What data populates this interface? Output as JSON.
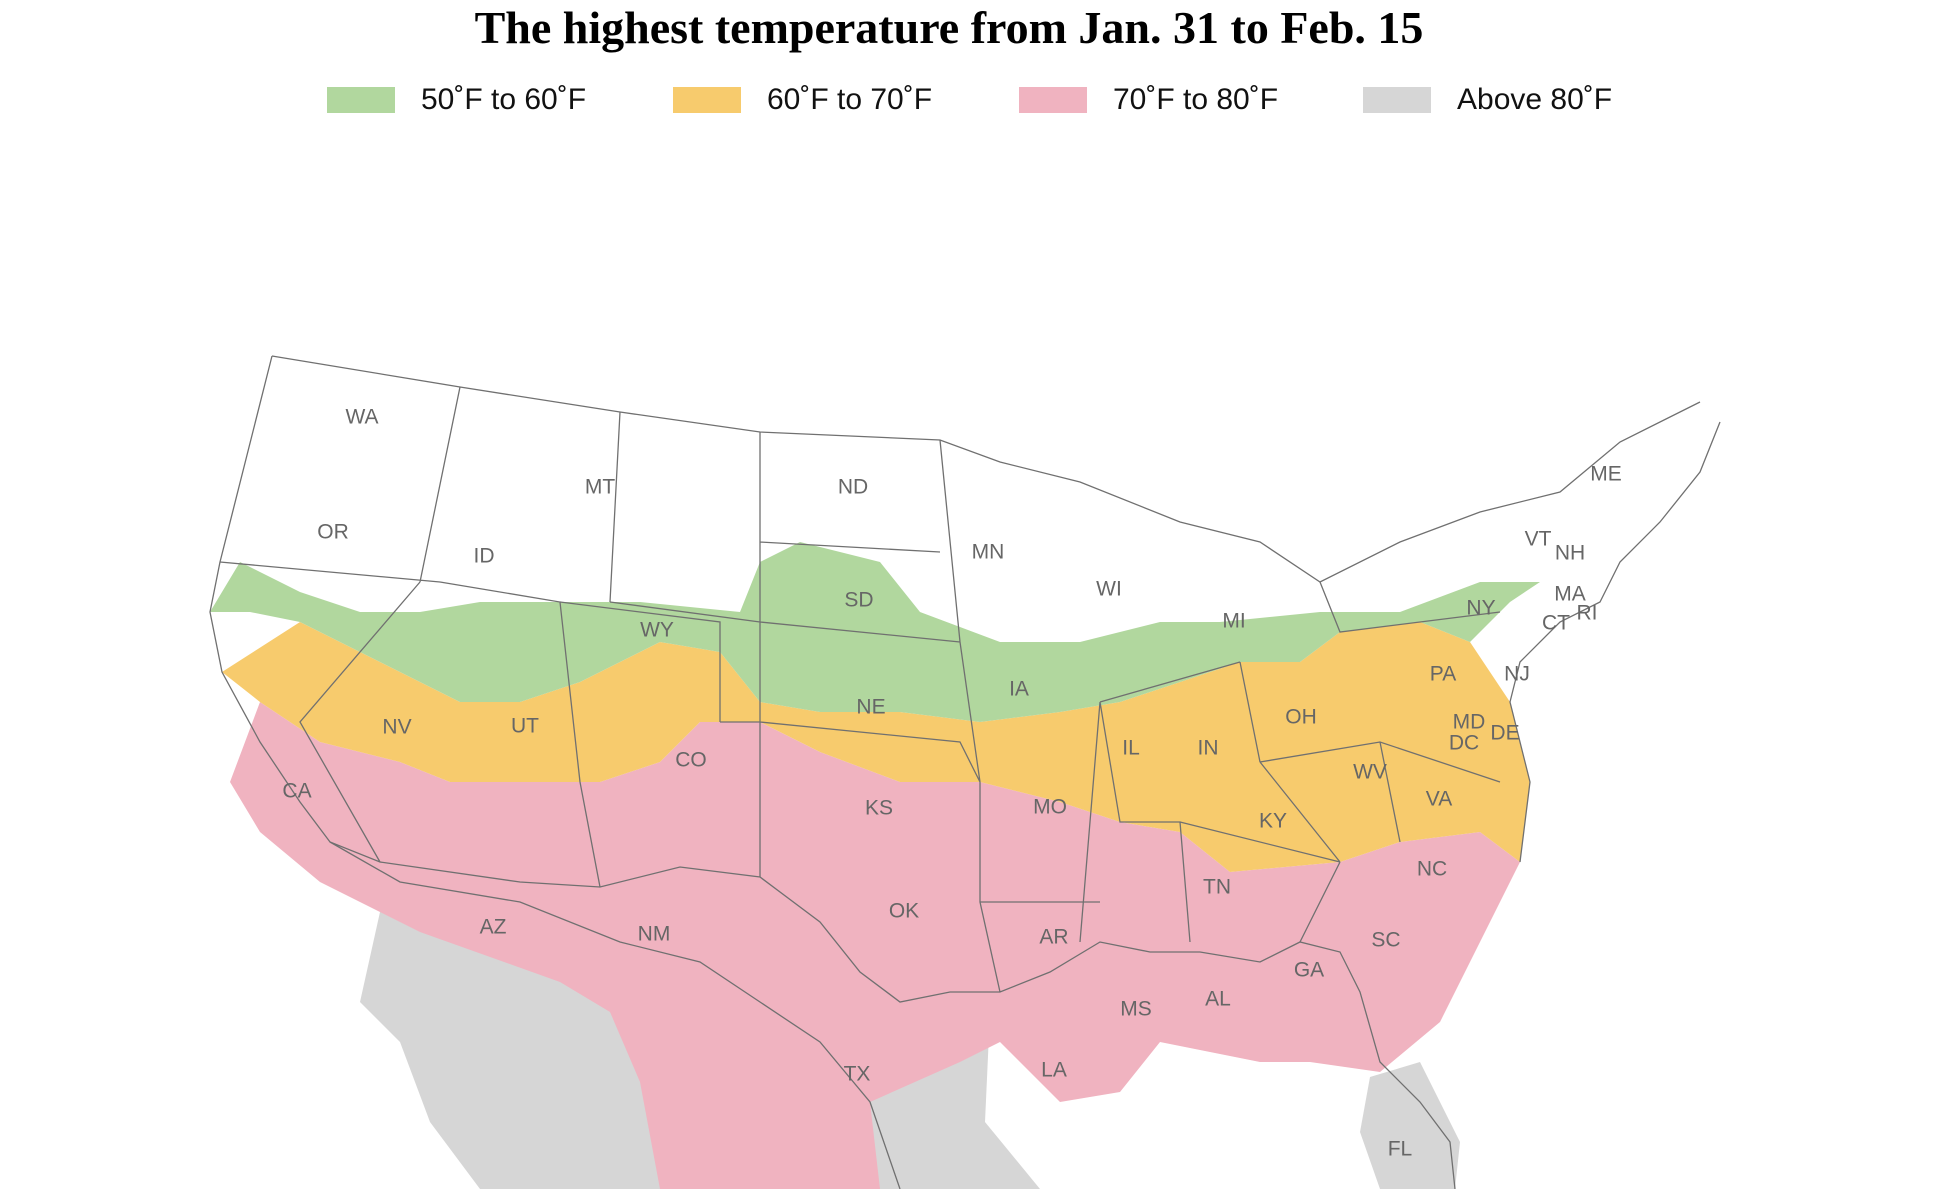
{
  "title": "The highest temperature from Jan. 31 to Feb. 15",
  "legend": [
    {
      "label": "50˚F to 60˚F",
      "color": "#b1d79e"
    },
    {
      "label": "60˚F to 70˚F",
      "color": "#f7cb6d"
    },
    {
      "label": "70˚F to 80˚F",
      "color": "#f0b3c0"
    },
    {
      "label": "Above 80˚F",
      "color": "#d6d6d6"
    }
  ],
  "colors": {
    "below_50": "#ffffff",
    "band_50_60": "#b1d79e",
    "band_60_70": "#f7cb6d",
    "band_70_80": "#f0b3c0",
    "above_80": "#d6d6d6",
    "state_border": "#707070",
    "label": "#666666"
  },
  "state_labels": [
    "WA",
    "OR",
    "CA",
    "NV",
    "ID",
    "MT",
    "WY",
    "UT",
    "CO",
    "AZ",
    "NM",
    "ND",
    "SD",
    "NE",
    "KS",
    "OK",
    "TX",
    "MN",
    "IA",
    "MO",
    "AR",
    "LA",
    "WI",
    "IL",
    "MI",
    "IN",
    "OH",
    "KY",
    "TN",
    "MS",
    "AL",
    "GA",
    "FL",
    "SC",
    "NC",
    "VA",
    "WV",
    "PA",
    "NY",
    "ME",
    "VT",
    "NH",
    "MA",
    "RI",
    "CT",
    "NJ",
    "DE",
    "MD",
    "DC"
  ]
}
